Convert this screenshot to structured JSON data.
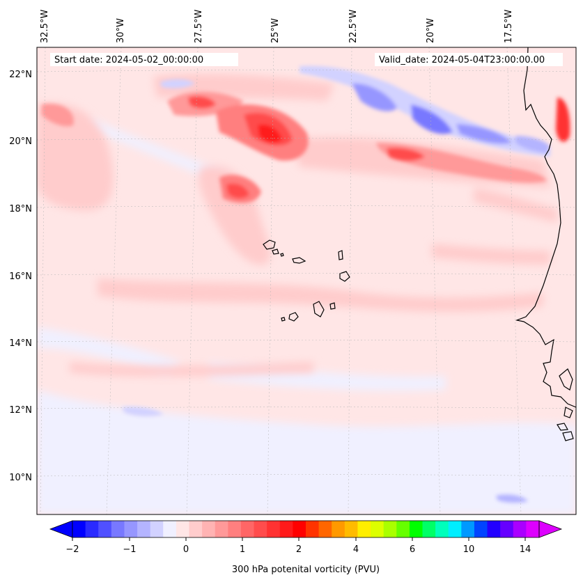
{
  "map": {
    "start_date": "Start date: 2024-05-02_00:00:00",
    "valid_date": "Valid_date: 2024-05-04T23:00:00.00",
    "lon_labels": [
      "32.5°W",
      "30°W",
      "27.5°W",
      "25°W",
      "22.5°W",
      "20°W",
      "17.5°W"
    ],
    "lat_labels": [
      "22°N",
      "20°N",
      "18°N",
      "16°N",
      "14°N",
      "12°N",
      "10°N"
    ]
  },
  "colorbar": {
    "title": "300 hPa potenital vorticity (PVU)",
    "tick_labels": [
      "−2",
      "−1",
      "0",
      "1",
      "2",
      "4",
      "6",
      "10",
      "14"
    ],
    "colors": [
      "#0000ff",
      "#2a2aff",
      "#5050ff",
      "#7878ff",
      "#9696ff",
      "#b4b4ff",
      "#d2d2ff",
      "#f0f0ff",
      "#ffe6e6",
      "#ffcccc",
      "#ffb3b3",
      "#ff9999",
      "#ff7f7f",
      "#ff6666",
      "#ff4c4c",
      "#ff3232",
      "#ff1a1a",
      "#ff0000",
      "#ff3300",
      "#ff6600",
      "#ff9900",
      "#ffbb00",
      "#ffee00",
      "#ddff00",
      "#aaff00",
      "#66ff00",
      "#00ff00",
      "#00ff66",
      "#00ffbb",
      "#00eeff",
      "#0099ff",
      "#0044ff",
      "#2200ff",
      "#6600ff",
      "#aa00ff",
      "#dd00ff"
    ],
    "extend_low_color": "#0000ff",
    "extend_high_color": "#dd00ff"
  }
}
